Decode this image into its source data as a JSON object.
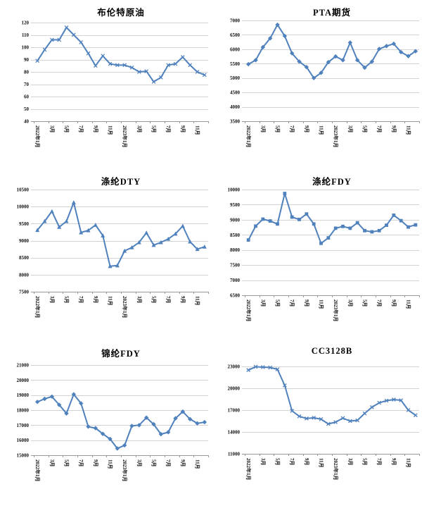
{
  "theme": {
    "background": "#FFFFFF",
    "line_color": "#4F81BD",
    "grid_color": "#D3D3D3",
    "axis_color": "#999999",
    "text_color": "#111111"
  },
  "chart_data": [
    {
      "type": "line",
      "title": "布伦特原油",
      "tick_labels": [
        "2022年1月",
        "3月",
        "5月",
        "7月",
        "9月",
        "11月",
        "2023年1月",
        "3月",
        "5月",
        "7月",
        "9月",
        "11月"
      ],
      "values": [
        89,
        98,
        106,
        106,
        116,
        110,
        104,
        95,
        85,
        93,
        86.5,
        85.5,
        85.5,
        83.5,
        80,
        80.5,
        72,
        75.5,
        85.5,
        86.5,
        92,
        85.5,
        80,
        77.5
      ],
      "yticks": [
        40,
        50,
        60,
        70,
        80,
        90,
        100,
        110,
        120
      ],
      "ylim": [
        40,
        120
      ],
      "marker": "x",
      "line_color": "#4F81BD",
      "grid": true,
      "legend": "none"
    },
    {
      "type": "line",
      "title": "PTA期货",
      "tick_labels": [
        "2022年1月",
        "3月",
        "5月",
        "7月",
        "9月",
        "11月",
        "2023年1月",
        "3月",
        "5月",
        "7月",
        "9月",
        "11月"
      ],
      "values": [
        5480,
        5620,
        6070,
        6380,
        6850,
        6460,
        5860,
        5570,
        5380,
        5000,
        5180,
        5550,
        5750,
        5620,
        6230,
        5620,
        5360,
        5570,
        6010,
        6110,
        6190,
        5900,
        5760,
        5930
      ],
      "yticks": [
        3500,
        4000,
        4500,
        5000,
        5500,
        6000,
        6500,
        7000
      ],
      "ylim": [
        3500,
        7000
      ],
      "marker": "diamond",
      "line_color": "#4F81BD",
      "grid": true,
      "legend": "none"
    },
    {
      "type": "line",
      "title": "涤纶DTY",
      "tick_labels": [
        "2022年1月",
        "3月",
        "5月",
        "7月",
        "9月",
        "11月",
        "2023年1月",
        "3月",
        "5月",
        "7月",
        "9月",
        "11月"
      ],
      "values": [
        9310,
        9570,
        9860,
        9400,
        9570,
        10120,
        9240,
        9300,
        9460,
        9150,
        8250,
        8270,
        8700,
        8800,
        8950,
        9230,
        8870,
        8950,
        9050,
        9200,
        9430,
        8970,
        8750,
        8820
      ],
      "yticks": [
        7500,
        8000,
        8500,
        9000,
        9500,
        10000,
        10500
      ],
      "ylim": [
        7500,
        10500
      ],
      "marker": "triangle",
      "line_color": "#4F81BD",
      "grid": true,
      "legend": "none"
    },
    {
      "type": "line",
      "title": "涤纶FDY",
      "tick_labels": [
        "2022年1月",
        "3月",
        "5月",
        "7月",
        "9月",
        "11月",
        "2023年1月",
        "3月",
        "5月",
        "7月",
        "9月",
        "11月"
      ],
      "values": [
        8330,
        8790,
        9020,
        8960,
        8860,
        9870,
        9090,
        9010,
        9190,
        8860,
        8220,
        8400,
        8720,
        8780,
        8720,
        8900,
        8640,
        8600,
        8640,
        8820,
        9150,
        8970,
        8760,
        8830
      ],
      "yticks": [
        6500,
        7000,
        7500,
        8000,
        8500,
        9000,
        9500,
        10000
      ],
      "ylim": [
        6500,
        10000
      ],
      "marker": "square",
      "line_color": "#4F81BD",
      "grid": true,
      "legend": "none"
    },
    {
      "type": "line",
      "title": "锦纶FDY",
      "tick_labels": [
        "2022年1月",
        "3月",
        "5月",
        "7月",
        "9月",
        "11月",
        "2023年1月",
        "3月",
        "5月",
        "7月",
        "9月",
        "11月"
      ],
      "values": [
        18550,
        18750,
        18900,
        18350,
        17780,
        19050,
        18450,
        16900,
        16800,
        16420,
        16080,
        15450,
        15660,
        16950,
        17000,
        17500,
        17060,
        16400,
        16530,
        17450,
        17900,
        17400,
        17120,
        17200
      ],
      "yticks": [
        15000,
        16000,
        17000,
        18000,
        19000,
        20000,
        21000
      ],
      "ylim": [
        15000,
        21000
      ],
      "marker": "diamond",
      "line_color": "#4F81BD",
      "grid": true,
      "legend": "none"
    },
    {
      "type": "line",
      "title": "CC3128B",
      "tick_labels": [
        "2022年1月",
        "3月",
        "5月",
        "7月",
        "9月",
        "11月",
        "2023年1月",
        "3月",
        "5月",
        "7月",
        "9月",
        "11月"
      ],
      "values": [
        22500,
        22950,
        22900,
        22850,
        22600,
        20400,
        16900,
        16150,
        15850,
        15950,
        15750,
        15100,
        15350,
        15900,
        15500,
        15600,
        16550,
        17400,
        18000,
        18300,
        18450,
        18350,
        17000,
        16300
      ],
      "yticks": [
        11000,
        14000,
        17000,
        20000,
        23000
      ],
      "ylim": [
        11000,
        23000
      ],
      "marker": "x",
      "line_color": "#4F81BD",
      "grid": true,
      "legend": "none"
    }
  ]
}
